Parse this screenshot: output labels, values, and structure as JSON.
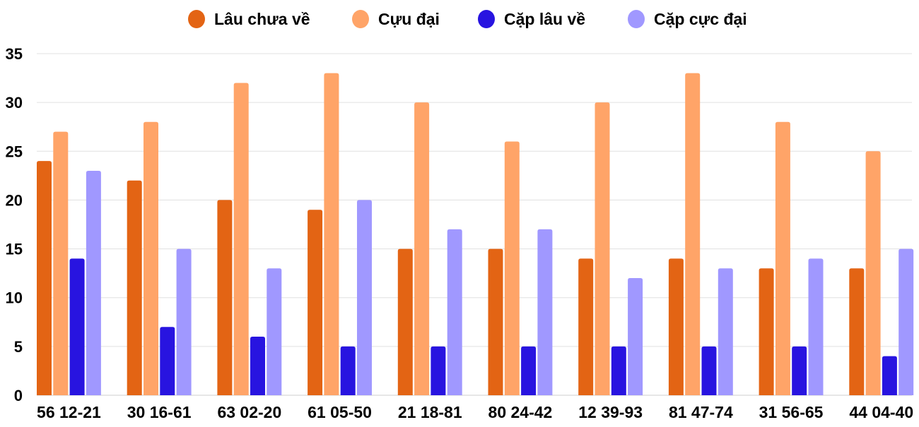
{
  "chart_data": {
    "type": "bar",
    "title": "",
    "xlabel": "",
    "ylabel": "",
    "ylim": [
      0,
      35
    ],
    "yticks": [
      0,
      5,
      10,
      15,
      20,
      25,
      30,
      35
    ],
    "grid": true,
    "legend_position": "top",
    "categories": [
      "56 12-21",
      "30 16-61",
      "63 02-20",
      "61 05-50",
      "21 18-81",
      "80 24-42",
      "12 39-93",
      "81 47-74",
      "31 56-65",
      "44 04-40"
    ],
    "series": [
      {
        "name": "Lâu chưa về",
        "color": "#E36414",
        "values": [
          24,
          22,
          20,
          19,
          15,
          15,
          14,
          14,
          13,
          13
        ]
      },
      {
        "name": "Cựu đại",
        "color": "#FFA468",
        "values": [
          27,
          28,
          32,
          33,
          30,
          26,
          30,
          33,
          28,
          25
        ]
      },
      {
        "name": "Cặp lâu về",
        "color": "#2814E0",
        "values": [
          14,
          7,
          6,
          5,
          5,
          5,
          5,
          5,
          5,
          4
        ]
      },
      {
        "name": "Cặp cực đại",
        "color": "#A098FF",
        "values": [
          23,
          15,
          13,
          20,
          17,
          17,
          12,
          13,
          14,
          15
        ]
      }
    ]
  }
}
